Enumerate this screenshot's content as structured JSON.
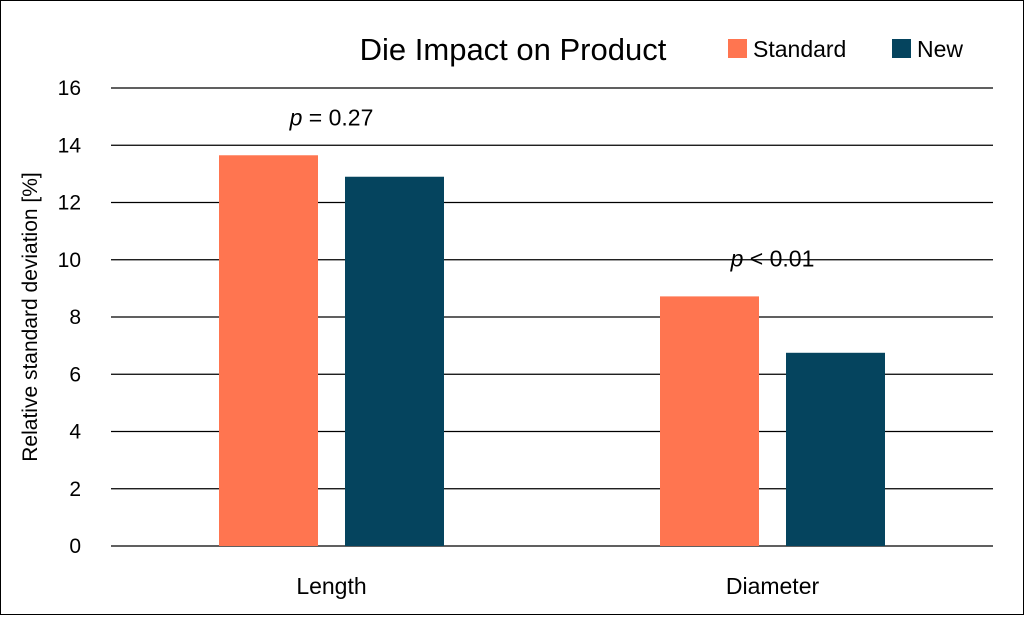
{
  "chart_data": {
    "type": "bar",
    "title": "Die Impact on Product",
    "xlabel": "",
    "ylabel": "Relative standard deviation [%]",
    "ylim": [
      0,
      16
    ],
    "yticks": [
      0,
      2,
      4,
      6,
      8,
      10,
      12,
      14,
      16
    ],
    "grid": "horizontal",
    "legend_position": "top-right",
    "categories": [
      "Length",
      "Diameter"
    ],
    "series": [
      {
        "name": "Standard",
        "color": "#FF7550",
        "values": [
          13.65,
          8.72
        ]
      },
      {
        "name": "New",
        "color": "#05445E",
        "values": [
          12.9,
          6.75
        ]
      }
    ],
    "annotations": [
      {
        "category": "Length",
        "italic": "p",
        "text": " = 0.27"
      },
      {
        "category": "Diameter",
        "italic": "p",
        "text": " < 0.01"
      }
    ]
  }
}
